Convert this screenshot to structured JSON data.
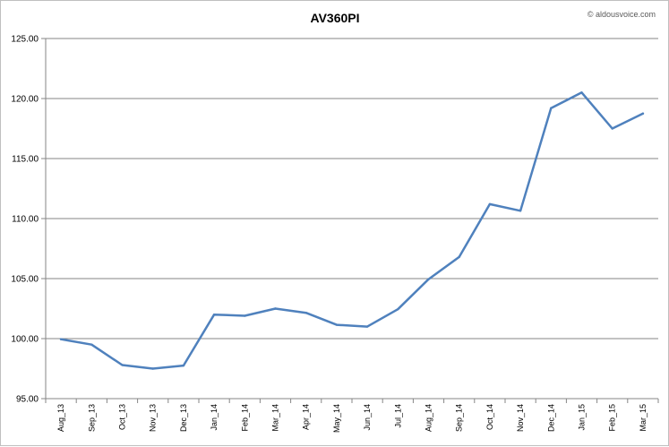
{
  "chart_data": {
    "type": "line",
    "title": "AV360PI",
    "xlabel": "",
    "ylabel": "",
    "categories": [
      "Aug_13",
      "Sep_13",
      "Oct_13",
      "Nov_13",
      "Dec_13",
      "Jan_14",
      "Feb_14",
      "Mar_14",
      "Apr_14",
      "May_14",
      "Jun_14",
      "Jul_14",
      "Aug_14",
      "Sep_14",
      "Oct_14",
      "Nov_14",
      "Dec_14",
      "Jan_15",
      "Feb_15",
      "Mar_15"
    ],
    "series": [
      {
        "values": [
          99.95,
          99.5,
          97.8,
          97.5,
          97.75,
          102.0,
          101.9,
          102.5,
          102.15,
          101.15,
          101.0,
          102.45,
          104.95,
          106.8,
          111.2,
          110.65,
          119.2,
          120.5,
          117.5,
          118.75
        ],
        "color": "#4f81bd"
      }
    ],
    "yticks": [
      "95.00",
      "100.00",
      "105.00",
      "110.00",
      "115.00",
      "120.00",
      "125.00"
    ],
    "ylim": [
      95,
      125
    ],
    "grid": true,
    "legend": "none"
  },
  "watermark": "© aldousvoice.com"
}
